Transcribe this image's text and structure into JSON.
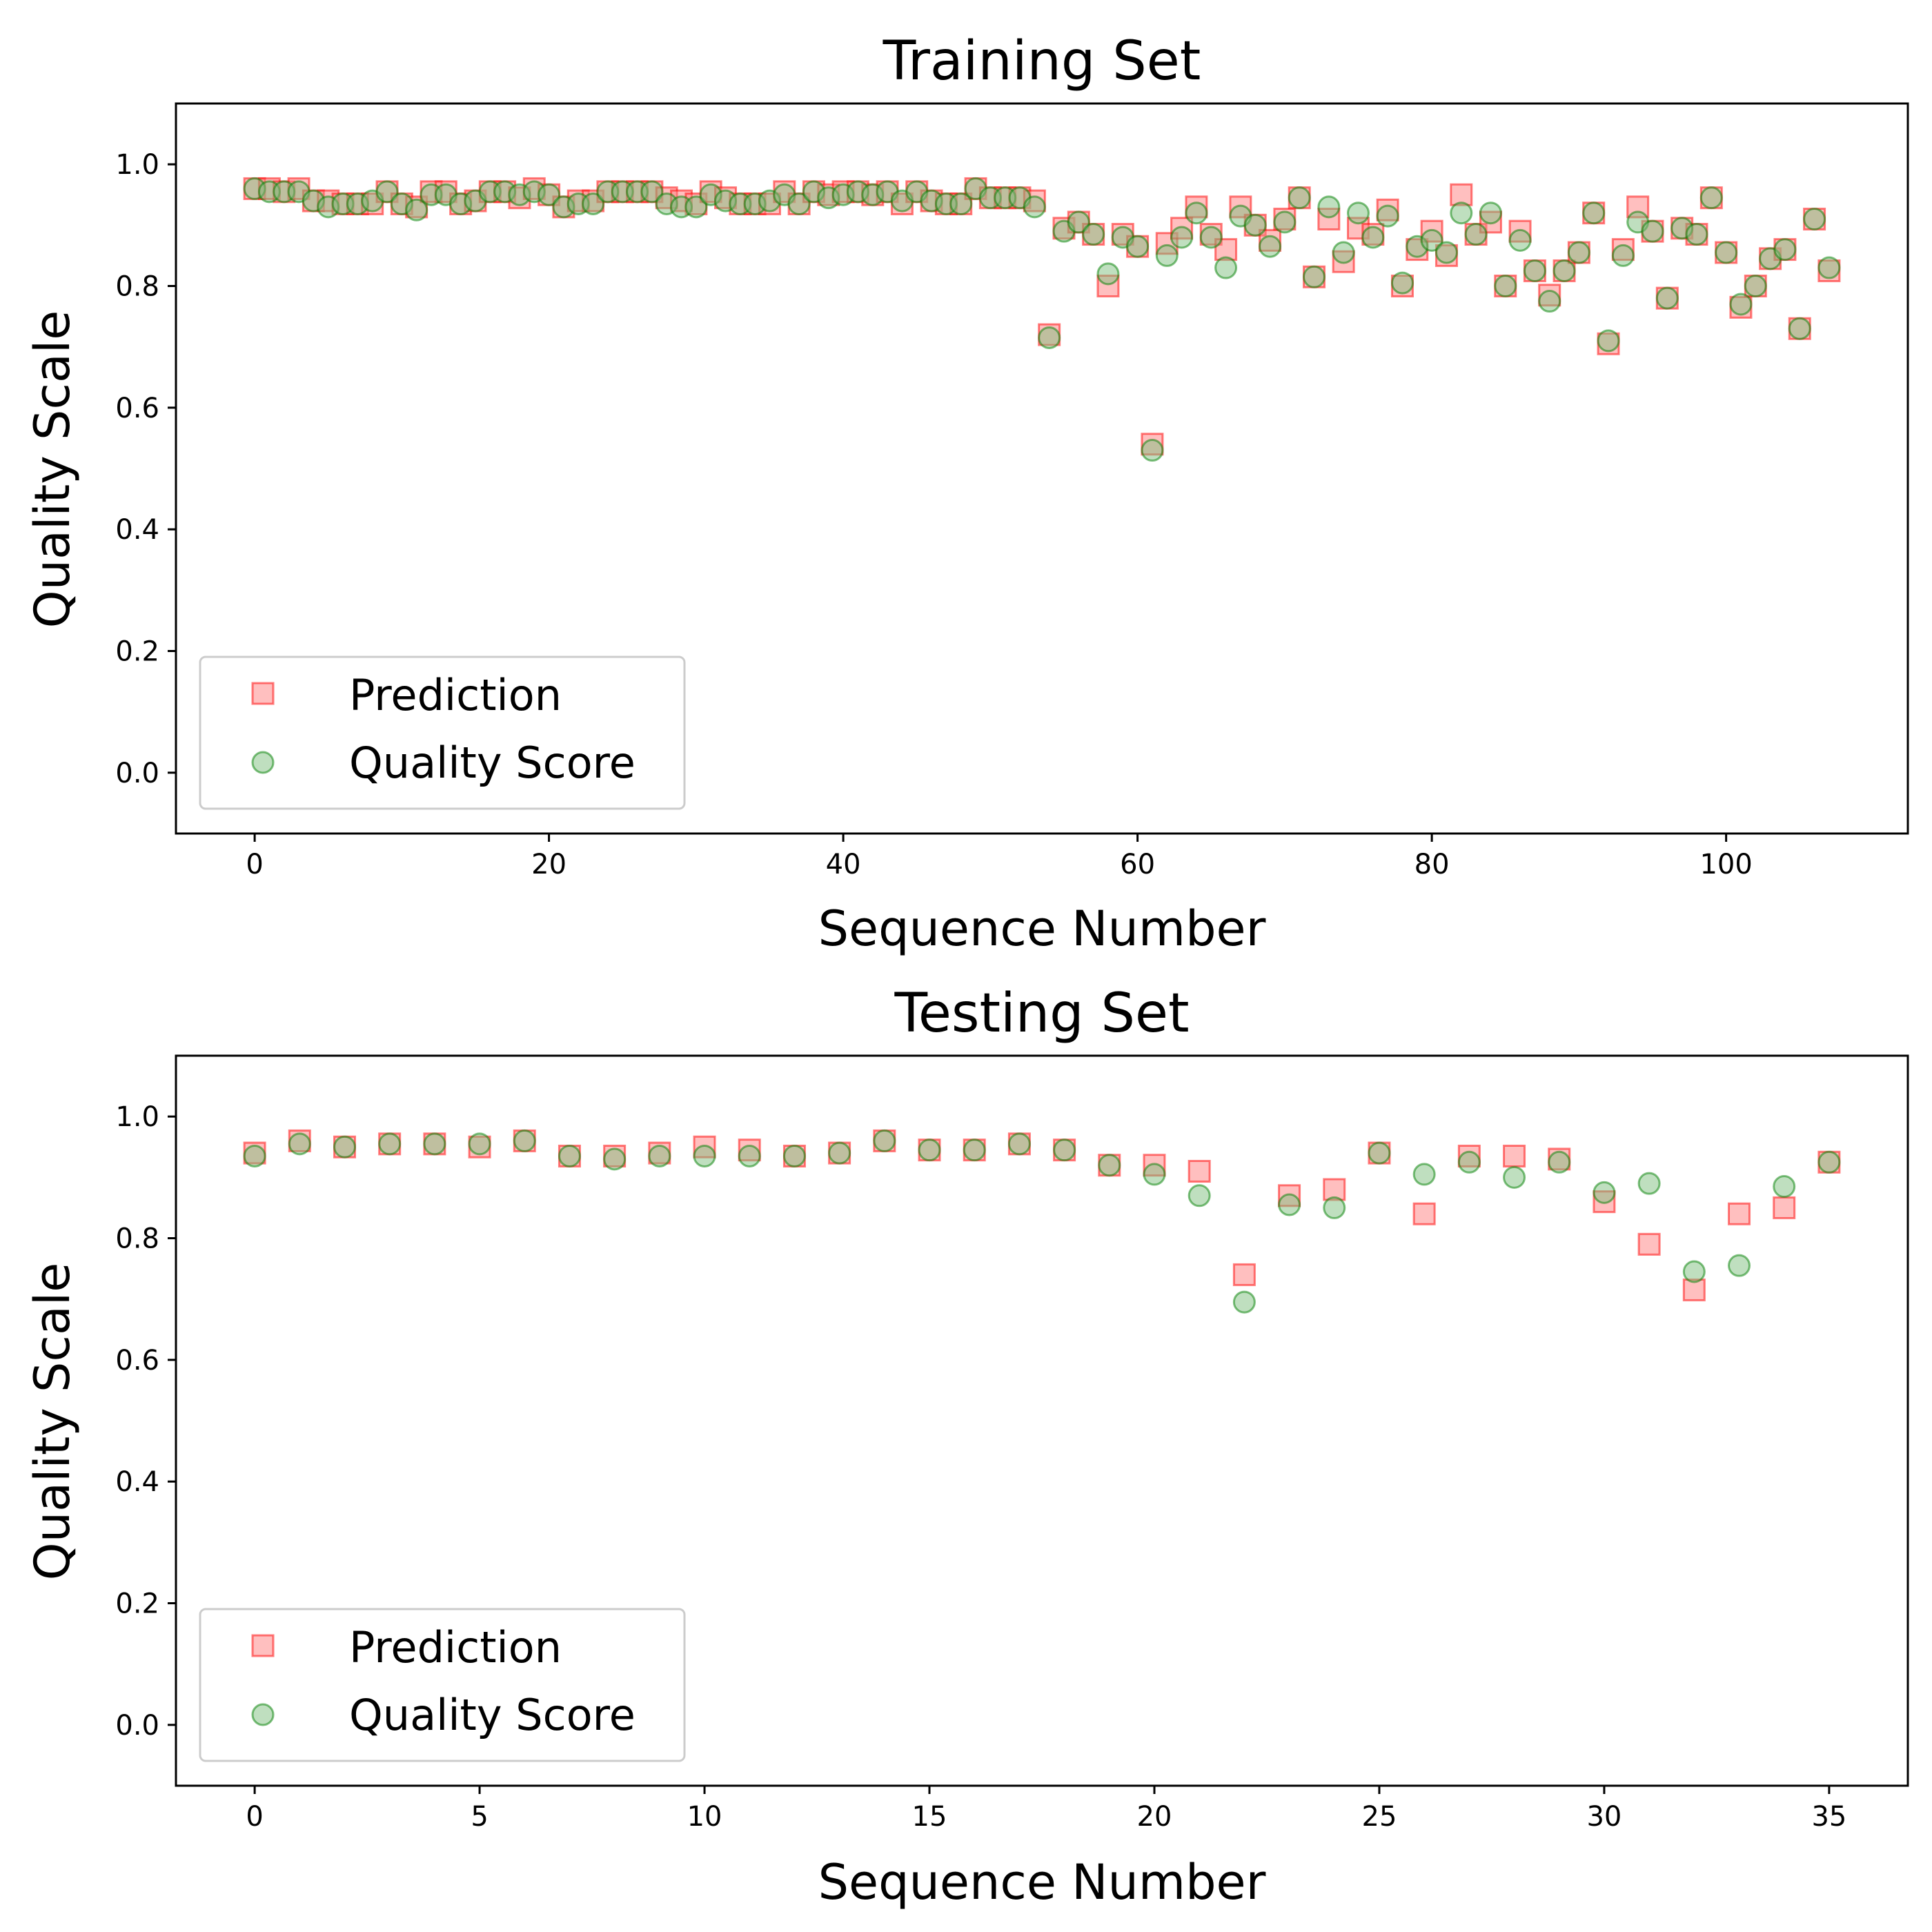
{
  "colors": {
    "prediction_face": "#ff7f7f",
    "prediction_edge": "#ff0000",
    "score_face": "#7fbf7f",
    "score_edge": "#008000",
    "marker_alpha": 0.5
  },
  "chart_data": [
    {
      "type": "scatter",
      "title": "Training Set",
      "xlabel": "Sequence Number",
      "ylabel": "Quality Scale",
      "xlim": [
        -5.35,
        112.35
      ],
      "ylim": [
        -0.1,
        1.1
      ],
      "xticks": [
        0,
        20,
        40,
        60,
        80,
        100
      ],
      "yticks": [
        0.0,
        0.2,
        0.4,
        0.6,
        0.8,
        1.0
      ],
      "xtick_labels": [
        "0",
        "20",
        "40",
        "60",
        "80",
        "100"
      ],
      "ytick_labels": [
        "0.0",
        "0.2",
        "0.4",
        "0.6",
        "0.8",
        "1.0"
      ],
      "legend": {
        "position": "lower left",
        "entries": [
          "Prediction",
          "Quality Score"
        ]
      },
      "grid": false,
      "series": [
        {
          "name": "Prediction",
          "marker": "square",
          "values": [
            0.96,
            0.96,
            0.955,
            0.96,
            0.94,
            0.94,
            0.935,
            0.935,
            0.935,
            0.955,
            0.935,
            0.93,
            0.955,
            0.955,
            0.935,
            0.94,
            0.955,
            0.955,
            0.945,
            0.96,
            0.95,
            0.93,
            0.94,
            0.94,
            0.955,
            0.955,
            0.955,
            0.955,
            0.945,
            0.94,
            0.935,
            0.955,
            0.945,
            0.935,
            0.935,
            0.935,
            0.955,
            0.935,
            0.955,
            0.95,
            0.955,
            0.955,
            0.95,
            0.955,
            0.935,
            0.955,
            0.94,
            0.935,
            0.935,
            0.96,
            0.945,
            0.945,
            0.945,
            0.94,
            0.72,
            0.895,
            0.905,
            0.885,
            0.8,
            0.885,
            0.865,
            0.54,
            0.87,
            0.895,
            0.93,
            0.885,
            0.86,
            0.93,
            0.9,
            0.875,
            0.91,
            0.945,
            0.815,
            0.91,
            0.84,
            0.895,
            0.885,
            0.925,
            0.8,
            0.86,
            0.89,
            0.85,
            0.95,
            0.885,
            0.905,
            0.8,
            0.89,
            0.825,
            0.785,
            0.825,
            0.855,
            0.92,
            0.705,
            0.86,
            0.93,
            0.89,
            0.78,
            0.895,
            0.885,
            0.945,
            0.855,
            0.765,
            0.8,
            0.845,
            0.86,
            0.73,
            0.91,
            0.825
          ]
        },
        {
          "name": "Quality Score",
          "marker": "circle",
          "values": [
            0.96,
            0.955,
            0.955,
            0.955,
            0.94,
            0.93,
            0.935,
            0.935,
            0.94,
            0.955,
            0.935,
            0.925,
            0.95,
            0.95,
            0.935,
            0.94,
            0.955,
            0.955,
            0.95,
            0.955,
            0.95,
            0.93,
            0.935,
            0.935,
            0.955,
            0.955,
            0.955,
            0.955,
            0.935,
            0.93,
            0.93,
            0.95,
            0.94,
            0.935,
            0.935,
            0.94,
            0.95,
            0.935,
            0.955,
            0.945,
            0.95,
            0.955,
            0.95,
            0.955,
            0.94,
            0.955,
            0.94,
            0.935,
            0.935,
            0.96,
            0.945,
            0.945,
            0.945,
            0.93,
            0.715,
            0.89,
            0.905,
            0.885,
            0.82,
            0.88,
            0.865,
            0.53,
            0.85,
            0.88,
            0.92,
            0.88,
            0.83,
            0.915,
            0.9,
            0.865,
            0.905,
            0.945,
            0.815,
            0.93,
            0.855,
            0.92,
            0.88,
            0.915,
            0.805,
            0.865,
            0.875,
            0.855,
            0.92,
            0.885,
            0.92,
            0.8,
            0.875,
            0.825,
            0.775,
            0.825,
            0.855,
            0.92,
            0.71,
            0.85,
            0.905,
            0.89,
            0.78,
            0.895,
            0.885,
            0.945,
            0.855,
            0.77,
            0.8,
            0.845,
            0.86,
            0.73,
            0.91,
            0.83
          ]
        }
      ]
    },
    {
      "type": "scatter",
      "title": "Testing Set",
      "xlabel": "Sequence Number",
      "ylabel": "Quality Scale",
      "xlim": [
        -1.75,
        36.75
      ],
      "ylim": [
        -0.1,
        1.1
      ],
      "xticks": [
        0,
        5,
        10,
        15,
        20,
        25,
        30,
        35
      ],
      "yticks": [
        0.0,
        0.2,
        0.4,
        0.6,
        0.8,
        1.0
      ],
      "xtick_labels": [
        "0",
        "5",
        "10",
        "15",
        "20",
        "25",
        "30",
        "35"
      ],
      "ytick_labels": [
        "0.0",
        "0.2",
        "0.4",
        "0.6",
        "0.8",
        "1.0"
      ],
      "legend": {
        "position": "lower left",
        "entries": [
          "Prediction",
          "Quality Score"
        ]
      },
      "grid": false,
      "series": [
        {
          "name": "Prediction",
          "marker": "square",
          "values": [
            0.94,
            0.96,
            0.95,
            0.955,
            0.955,
            0.95,
            0.96,
            0.935,
            0.935,
            0.94,
            0.95,
            0.945,
            0.935,
            0.94,
            0.96,
            0.945,
            0.945,
            0.955,
            0.945,
            0.92,
            0.92,
            0.91,
            0.74,
            0.87,
            0.88,
            0.94,
            0.84,
            0.935,
            0.935,
            0.93,
            0.86,
            0.79,
            0.715,
            0.84,
            0.85,
            0.925
          ]
        },
        {
          "name": "Quality Score",
          "marker": "circle",
          "values": [
            0.935,
            0.955,
            0.95,
            0.955,
            0.955,
            0.955,
            0.96,
            0.935,
            0.93,
            0.935,
            0.935,
            0.935,
            0.935,
            0.94,
            0.96,
            0.945,
            0.945,
            0.955,
            0.945,
            0.92,
            0.905,
            0.87,
            0.695,
            0.855,
            0.85,
            0.94,
            0.905,
            0.925,
            0.9,
            0.925,
            0.875,
            0.89,
            0.745,
            0.755,
            0.885,
            0.925
          ]
        }
      ]
    }
  ]
}
